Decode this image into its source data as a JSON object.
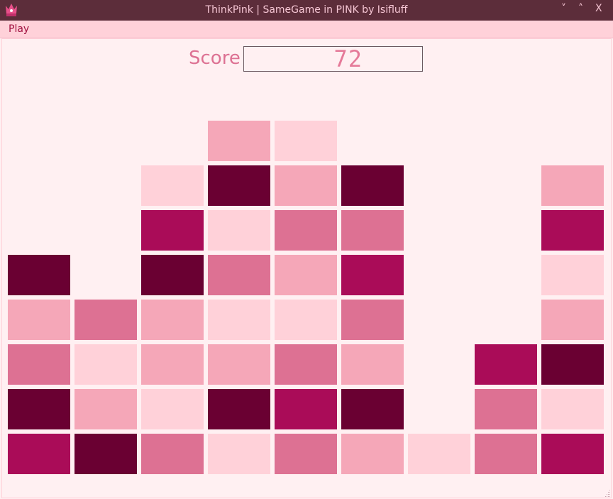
{
  "window": {
    "title": "ThinkPink | SameGame in PINK by Isifluff",
    "icon": "crown-icon",
    "controls": {
      "minimize": "˅",
      "maximize": "˄",
      "close": "X"
    }
  },
  "menu": {
    "items": [
      {
        "label": "Play"
      }
    ]
  },
  "score": {
    "label": "Score",
    "value": "72"
  },
  "palette": {
    "A": "#6a0032",
    "B": "#aa0c58",
    "C": "#dd7193",
    "D": "#f5a7b8",
    "E": "#ffd1d9"
  },
  "board": {
    "columns": 9,
    "rows": [
      "...DE....",
      "..EADA..D",
      "..BECC..B",
      "A.ACDB..E",
      "DCDEEC..D",
      "CEDDCD.BA",
      "ADEABA.CE",
      "BACECDECB"
    ]
  }
}
